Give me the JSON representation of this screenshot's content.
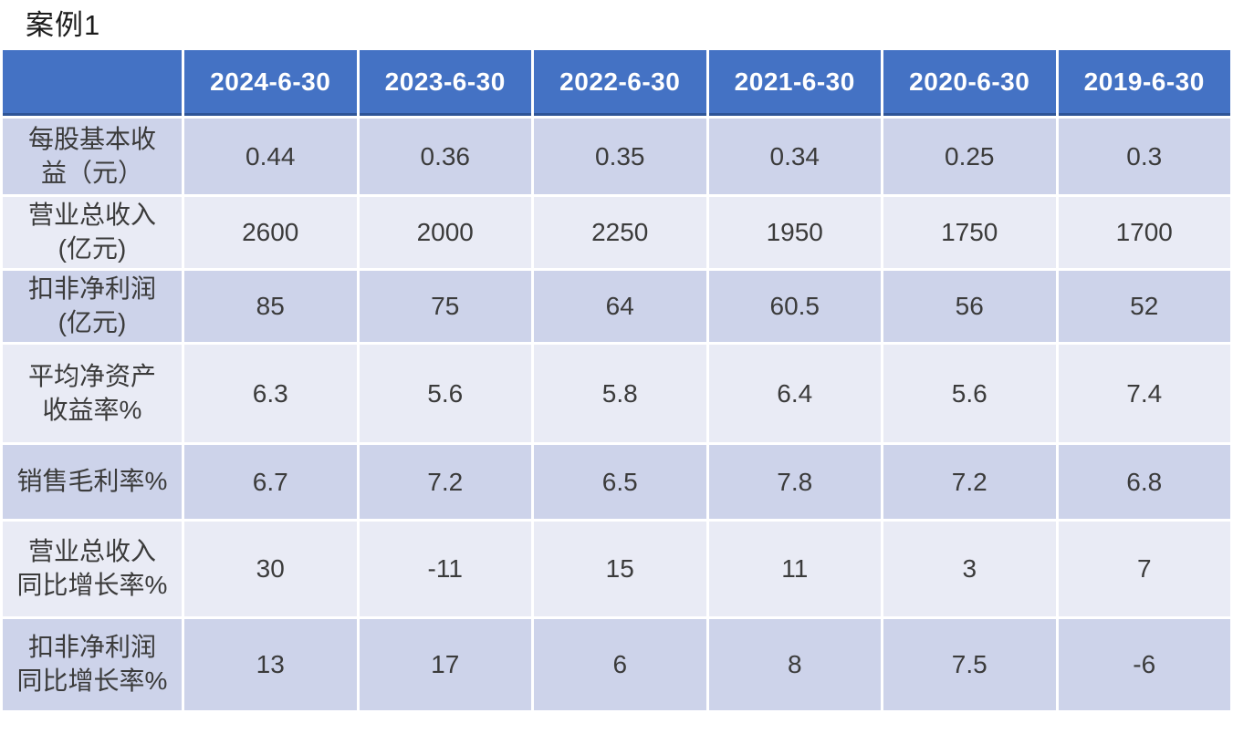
{
  "page_title": "案例1",
  "colors": {
    "header_bg": "#4472C4",
    "header_underline": "#2F5597",
    "band_dark": "#CDD3EA",
    "band_light": "#E9EBF5",
    "header_text": "#FFFFFF",
    "body_text": "#3B3B3B",
    "page_bg": "#FFFFFF"
  },
  "table": {
    "header": {
      "corner": "",
      "columns": [
        "2024-6-30",
        "2023-6-30",
        "2022-6-30",
        "2021-6-30",
        "2020-6-30",
        "2019-6-30"
      ]
    },
    "rows": [
      {
        "label": "每股基本收\n益（元）",
        "values": [
          "0.44",
          "0.36",
          "0.35",
          "0.34",
          "0.25",
          "0.3"
        ]
      },
      {
        "label": "营业总收入\n(亿元)",
        "values": [
          "2600",
          "2000",
          "2250",
          "1950",
          "1750",
          "1700"
        ]
      },
      {
        "label": "扣非净利润\n(亿元)",
        "values": [
          "85",
          "75",
          "64",
          "60.5",
          "56",
          "52"
        ]
      },
      {
        "label": "平均净资产\n收益率%",
        "values": [
          "6.3",
          "5.6",
          "5.8",
          "6.4",
          "5.6",
          "7.4"
        ]
      },
      {
        "label": "销售毛利率%",
        "values": [
          "6.7",
          "7.2",
          "6.5",
          "7.8",
          "7.2",
          "6.8"
        ]
      },
      {
        "label": "营业总收入\n同比增长率%",
        "values": [
          "30",
          "-11",
          "15",
          "11",
          "3",
          "7"
        ]
      },
      {
        "label": "扣非净利润\n同比增长率%",
        "values": [
          "13",
          "17",
          "6",
          "8",
          "7.5",
          "-6"
        ]
      }
    ]
  },
  "chart_data": {
    "type": "table",
    "title": "案例1",
    "categories": [
      "2024-6-30",
      "2023-6-30",
      "2022-6-30",
      "2021-6-30",
      "2020-6-30",
      "2019-6-30"
    ],
    "series": [
      {
        "name": "每股基本收益（元）",
        "values": [
          0.44,
          0.36,
          0.35,
          0.34,
          0.25,
          0.3
        ]
      },
      {
        "name": "营业总收入(亿元)",
        "values": [
          2600,
          2000,
          2250,
          1950,
          1750,
          1700
        ]
      },
      {
        "name": "扣非净利润(亿元)",
        "values": [
          85,
          75,
          64,
          60.5,
          56,
          52
        ]
      },
      {
        "name": "平均净资产收益率%",
        "values": [
          6.3,
          5.6,
          5.8,
          6.4,
          5.6,
          7.4
        ]
      },
      {
        "name": "销售毛利率%",
        "values": [
          6.7,
          7.2,
          6.5,
          7.8,
          7.2,
          6.8
        ]
      },
      {
        "name": "营业总收入同比增长率%",
        "values": [
          30,
          -11,
          15,
          11,
          3,
          7
        ]
      },
      {
        "name": "扣非净利润同比增长率%",
        "values": [
          13,
          17,
          6,
          8,
          7.5,
          -6
        ]
      }
    ],
    "layout": {
      "header_row": "dates",
      "first_column": "metric-names",
      "banding": "alternating-rows"
    }
  }
}
